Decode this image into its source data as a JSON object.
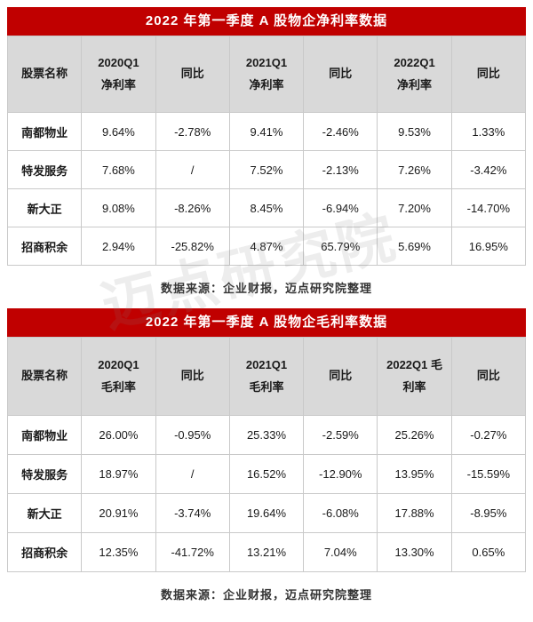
{
  "watermark": "迈点研究院",
  "colors": {
    "title_bg": "#c00000",
    "header_bg": "#d9d9d9",
    "border": "#c9c9c9",
    "body_text": "#1a1a1a"
  },
  "chart_data": [
    {
      "type": "table",
      "title": "2022 年第一季度 A 股物企净利率数据",
      "columns": [
        "股票名称",
        "2020Q1\n净利率",
        "同比",
        "2021Q1\n净利率",
        "同比",
        "2022Q1\n净利率",
        "同比"
      ],
      "rows": [
        [
          "南都物业",
          "9.64%",
          "-2.78%",
          "9.41%",
          "-2.46%",
          "9.53%",
          "1.33%"
        ],
        [
          "特发服务",
          "7.68%",
          "/",
          "7.52%",
          "-2.13%",
          "7.26%",
          "-3.42%"
        ],
        [
          "新大正",
          "9.08%",
          "-8.26%",
          "8.45%",
          "-6.94%",
          "7.20%",
          "-14.70%"
        ],
        [
          "招商积余",
          "2.94%",
          "-25.82%",
          "4.87%",
          "65.79%",
          "5.69%",
          "16.95%"
        ]
      ],
      "source": "数据来源：企业财报，迈点研究院整理"
    },
    {
      "type": "table",
      "title": "2022 年第一季度 A 股物企毛利率数据",
      "columns": [
        "股票名称",
        "2020Q1\n毛利率",
        "同比",
        "2021Q1\n毛利率",
        "同比",
        "2022Q1 毛\n利率",
        "同比"
      ],
      "rows": [
        [
          "南都物业",
          "26.00%",
          "-0.95%",
          "25.33%",
          "-2.59%",
          "25.26%",
          "-0.27%"
        ],
        [
          "特发服务",
          "18.97%",
          "/",
          "16.52%",
          "-12.90%",
          "13.95%",
          "-15.59%"
        ],
        [
          "新大正",
          "20.91%",
          "-3.74%",
          "19.64%",
          "-6.08%",
          "17.88%",
          "-8.95%"
        ],
        [
          "招商积余",
          "12.35%",
          "-41.72%",
          "13.21%",
          "7.04%",
          "13.30%",
          "0.65%"
        ]
      ],
      "source": "数据来源：企业财报，迈点研究院整理"
    }
  ]
}
